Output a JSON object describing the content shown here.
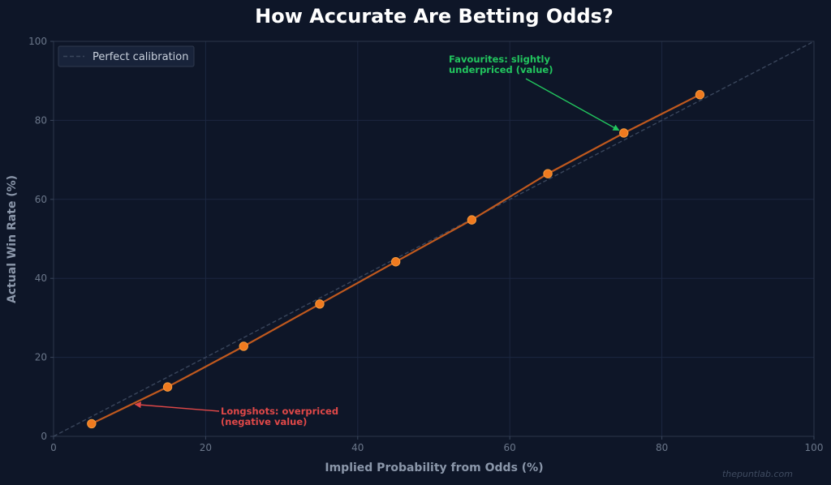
{
  "chart_data": {
    "type": "line",
    "title": "How Accurate Are Betting Odds?",
    "xlabel": "Implied Probability from Odds (%)",
    "ylabel": "Actual Win Rate (%)",
    "xlim": [
      0,
      100
    ],
    "ylim": [
      0,
      100
    ],
    "xticks": [
      0,
      20,
      40,
      60,
      80,
      100
    ],
    "yticks": [
      0,
      20,
      40,
      60,
      80,
      100
    ],
    "grid": true,
    "legend": {
      "placement": "top-left",
      "entries": [
        "Perfect calibration"
      ]
    },
    "series": [
      {
        "name": "Perfect calibration",
        "style": "dashed",
        "color": "#3a465c",
        "x": [
          0,
          100
        ],
        "y": [
          0,
          100
        ]
      },
      {
        "name": "",
        "style": "solid-markers",
        "color": "#f07a1f",
        "line_color": "#c0591e",
        "x": [
          5,
          15,
          25,
          35,
          45,
          55,
          65,
          75,
          85
        ],
        "y": [
          3.2,
          12.5,
          22.8,
          33.5,
          44.2,
          54.8,
          66.5,
          76.8,
          86.5
        ]
      }
    ],
    "annotations": [
      {
        "lines": [
          "Favourites: slightly",
          "underpriced (value)"
        ],
        "color": "#22c55e",
        "point": [
          75,
          76.8
        ]
      },
      {
        "lines": [
          "Longshots: overpriced",
          "(negative value)"
        ],
        "color": "#e04848",
        "point": [
          10,
          8.2
        ]
      }
    ]
  },
  "watermark": "thepuntlab.com"
}
